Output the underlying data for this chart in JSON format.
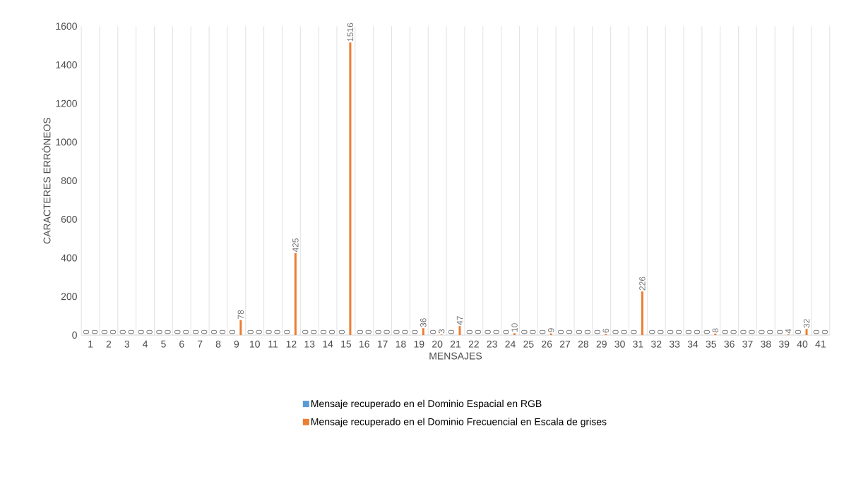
{
  "chart_data": {
    "type": "bar",
    "xlabel": "MENSAJES",
    "ylabel": "CARACTERES ERRÓNEOS",
    "categories": [
      "1",
      "2",
      "3",
      "4",
      "5",
      "6",
      "7",
      "8",
      "9",
      "10",
      "11",
      "12",
      "13",
      "14",
      "15",
      "16",
      "17",
      "18",
      "19",
      "20",
      "21",
      "22",
      "23",
      "24",
      "25",
      "26",
      "27",
      "28",
      "29",
      "30",
      "31",
      "32",
      "33",
      "34",
      "35",
      "36",
      "37",
      "38",
      "39",
      "40",
      "41"
    ],
    "series": [
      {
        "name": "Mensaje recuperado en el Dominio Espacial en RGB",
        "color": "#5b9bd5",
        "values": [
          0,
          0,
          0,
          0,
          0,
          0,
          0,
          0,
          0,
          0,
          0,
          0,
          0,
          0,
          0,
          0,
          0,
          0,
          0,
          0,
          0,
          0,
          0,
          0,
          0,
          0,
          0,
          0,
          0,
          0,
          0,
          0,
          0,
          0,
          0,
          0,
          0,
          0,
          0,
          0,
          0
        ]
      },
      {
        "name": "Mensaje recuperado en el Dominio Frecuencial en Escala de grises",
        "color": "#ed7d31",
        "values": [
          0,
          0,
          0,
          0,
          0,
          0,
          0,
          0,
          78,
          0,
          0,
          425,
          0,
          0,
          1516,
          0,
          0,
          0,
          36,
          3,
          47,
          0,
          0,
          10,
          0,
          9,
          0,
          0,
          6,
          0,
          226,
          0,
          0,
          0,
          8,
          0,
          0,
          0,
          4,
          32,
          0
        ]
      }
    ],
    "ylim": [
      0,
      1600
    ],
    "yticks": [
      0,
      200,
      400,
      600,
      800,
      1000,
      1200,
      1400,
      1600
    ],
    "grid": "x",
    "legend": "bottom",
    "data_labels": true
  }
}
